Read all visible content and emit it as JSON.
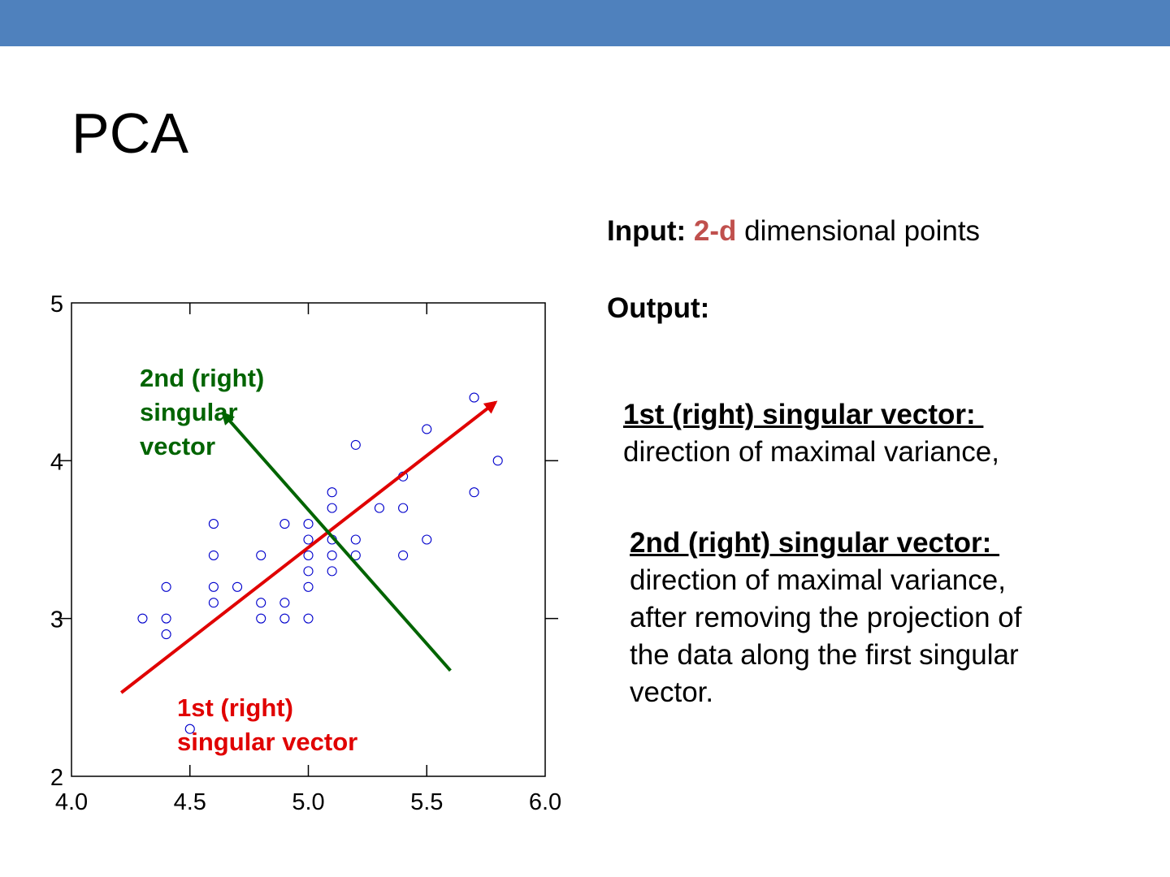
{
  "slide": {
    "title": "PCA",
    "colors": {
      "banner": "#4f81bd",
      "accent": "#c0504d",
      "first_vector": "#e00000",
      "second_vector": "#006400",
      "points": "#0000cc"
    }
  },
  "text": {
    "input_label": "Input:",
    "input_highlight": "2-d",
    "input_rest": " dimensional points",
    "output_label": "Output:",
    "first_heading": "1st (right) singular vector: ",
    "first_body": "direction of maximal variance,",
    "second_heading": "2nd (right) singular vector: ",
    "second_body_lines": [
      "direction of maximal variance,",
      "after removing the projection of",
      "the data along the first singular",
      "vector."
    ]
  },
  "chart_data": {
    "type": "scatter",
    "xlim": [
      4.0,
      6.0
    ],
    "ylim": [
      2,
      5
    ],
    "xticks": [
      "4.0",
      "4.5",
      "5.0",
      "5.5",
      "6.0"
    ],
    "yticks": [
      "2",
      "3",
      "4",
      "5"
    ],
    "points": [
      [
        4.3,
        3.0
      ],
      [
        4.4,
        3.2
      ],
      [
        4.4,
        3.0
      ],
      [
        4.4,
        2.9
      ],
      [
        4.5,
        2.3
      ],
      [
        4.6,
        3.6
      ],
      [
        4.6,
        3.4
      ],
      [
        4.6,
        3.2
      ],
      [
        4.6,
        3.1
      ],
      [
        4.7,
        3.2
      ],
      [
        4.8,
        3.4
      ],
      [
        4.8,
        3.1
      ],
      [
        4.8,
        3.0
      ],
      [
        4.9,
        3.6
      ],
      [
        4.9,
        3.1
      ],
      [
        4.9,
        3.0
      ],
      [
        5.0,
        3.6
      ],
      [
        5.0,
        3.5
      ],
      [
        5.0,
        3.4
      ],
      [
        5.0,
        3.3
      ],
      [
        5.0,
        3.2
      ],
      [
        5.0,
        3.0
      ],
      [
        5.1,
        3.8
      ],
      [
        5.1,
        3.7
      ],
      [
        5.1,
        3.5
      ],
      [
        5.1,
        3.4
      ],
      [
        5.1,
        3.3
      ],
      [
        5.2,
        4.1
      ],
      [
        5.2,
        3.5
      ],
      [
        5.2,
        3.4
      ],
      [
        5.3,
        3.7
      ],
      [
        5.4,
        3.9
      ],
      [
        5.4,
        3.7
      ],
      [
        5.4,
        3.4
      ],
      [
        5.5,
        4.2
      ],
      [
        5.5,
        3.5
      ],
      [
        5.7,
        4.4
      ],
      [
        5.7,
        3.8
      ],
      [
        5.8,
        4.0
      ]
    ],
    "vectors": [
      {
        "name": "1st (right) singular vector",
        "label_lines": [
          "1st (right)",
          "singular vector"
        ],
        "from": [
          4.21,
          2.53
        ],
        "to": [
          5.79,
          4.37
        ],
        "color": "#e00000"
      },
      {
        "name": "2nd (right) singular vector",
        "label_lines": [
          "2nd (right)",
          "singular",
          "vector"
        ],
        "from": [
          5.6,
          2.67
        ],
        "to": [
          4.64,
          4.3
        ],
        "color": "#006400"
      }
    ]
  }
}
